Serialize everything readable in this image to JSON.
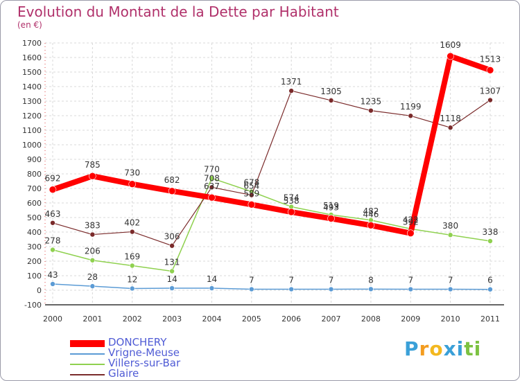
{
  "chart_data": {
    "type": "line",
    "title": "Evolution du Montant de la Dette par Habitant",
    "subtitle": "(en €)",
    "xlabel": "",
    "ylabel": "",
    "ylim": [
      -100,
      1700
    ],
    "yticks": [
      "-100",
      "0",
      "100",
      "200",
      "300",
      "400",
      "500",
      "600",
      "700",
      "800",
      "900",
      "1000",
      "1100",
      "1200",
      "1300",
      "1400",
      "1500",
      "1600",
      "1700"
    ],
    "categories": [
      "2000",
      "2001",
      "2002",
      "2003",
      "2004",
      "2005",
      "2006",
      "2007",
      "2008",
      "2009",
      "2010",
      "2011"
    ],
    "grid": true,
    "legend_position": "bottom-left",
    "series": [
      {
        "name": "DONCHERY",
        "color": "#ff0000",
        "values": [
          692,
          785,
          730,
          682,
          637,
          589,
          538,
          493,
          446,
          392,
          1609,
          1513
        ],
        "labels": [
          "692",
          "785",
          "730",
          "682",
          "637",
          "589",
          "538",
          "493",
          "446",
          "392",
          "1609",
          "1513"
        ]
      },
      {
        "name": "Vrigne-Meuse",
        "color": "#5b9bd5",
        "values": [
          43,
          28,
          12,
          14,
          14,
          7,
          7,
          7,
          8,
          7,
          7,
          6
        ],
        "labels": [
          "43",
          "28",
          "12",
          "14",
          "14",
          "7",
          "7",
          "7",
          "8",
          "7",
          "7",
          "6"
        ]
      },
      {
        "name": "Villers-sur-Bar",
        "color": "#8fd14f",
        "values": [
          278,
          206,
          169,
          131,
          770,
          678,
          574,
          519,
          482,
          422,
          380,
          338
        ],
        "labels": [
          "278",
          "206",
          "169",
          "131",
          "770",
          "678",
          "574",
          "519",
          "482",
          "422",
          "380",
          "338"
        ]
      },
      {
        "name": "Glaire",
        "color": "#7a2a2a",
        "values": [
          463,
          383,
          402,
          306,
          708,
          654,
          1371,
          1305,
          1235,
          1199,
          1118,
          1307
        ],
        "labels": [
          "463",
          "383",
          "402",
          "306",
          "708",
          "654",
          "1371",
          "1305",
          "1235",
          "1199",
          "1118",
          "1307"
        ]
      }
    ]
  },
  "legend": {
    "items": [
      "DONCHERY",
      "Vrigne-Meuse",
      "Villers-sur-Bar",
      "Glaire"
    ],
    "colors": [
      "#ff0000",
      "#5b9bd5",
      "#8fd14f",
      "#7a2a2a"
    ],
    "label_color": "#4f5bd5"
  },
  "logo": {
    "letters": [
      "P",
      "r",
      "o",
      "x",
      "i",
      "t",
      "i"
    ],
    "colors": [
      "#3aa0d8",
      "#f39c1f",
      "#f3b81f",
      "#3aa0d8",
      "#3aa0d8",
      "#7cc242",
      "#7cc242"
    ]
  }
}
